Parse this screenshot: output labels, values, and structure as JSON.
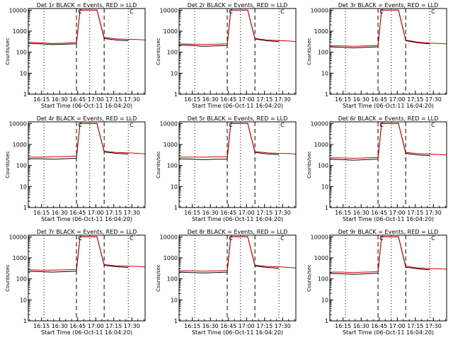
{
  "common": {
    "xlabel": "Start Time (06-Oct-11 16:04:20)",
    "ylabel": "Counts/sec",
    "x_ticks": [
      "16:15",
      "16:30",
      "16:45",
      "17:00",
      "17:15",
      "17:30"
    ],
    "y_ticks": [
      "1",
      "10",
      "100",
      "1000",
      "10000"
    ],
    "event_label": "C",
    "event_label_left": "C",
    "colors": {
      "events": "#000000",
      "lld": "#cc0000",
      "axes": "#000000"
    }
  },
  "chart_data": [
    {
      "type": "line",
      "title": "Det 1r BLACK = Events, RED = LLD",
      "xlabel": "Start Time (06-Oct-11 16:04:20)",
      "ylabel": "Counts/sec",
      "xlim": [
        "16:04",
        "17:41"
      ],
      "ylim": [
        1,
        12000
      ],
      "yscale": "log",
      "dotted_lines": [
        "16:17",
        "16:55",
        "17:27"
      ],
      "dashed_lines": [
        "16:44",
        "17:07"
      ],
      "x": [
        "16:04",
        "16:14",
        "16:24",
        "16:34",
        "16:44",
        "16:47",
        "16:50",
        "16:55",
        "17:01",
        "17:07",
        "17:17",
        "17:27",
        "17:35",
        "17:41"
      ],
      "series": [
        {
          "values": [
            300,
            280,
            260,
            270,
            290,
            10000,
            10000,
            10000,
            10000,
            500,
            430,
            410,
            400,
            380
          ]
        },
        {
          "values": [
            260,
            250,
            230,
            240,
            250,
            10000,
            10000,
            10000,
            10000,
            450,
            380,
            350,
            null,
            null
          ]
        }
      ]
    },
    {
      "type": "line",
      "title": "Det 2r BLACK = Events, RED = LLD",
      "xlabel": "Start Time (06-Oct-11 16:04:20)",
      "ylabel": "Counts/sec",
      "xlim": [
        "16:04",
        "17:41"
      ],
      "ylim": [
        1,
        12000
      ],
      "yscale": "log",
      "dotted_lines": [
        "16:17",
        "16:55",
        "17:27"
      ],
      "dashed_lines": [
        "16:44",
        "17:07"
      ],
      "x": [
        "16:04",
        "16:14",
        "16:24",
        "16:34",
        "16:44",
        "16:47",
        "16:50",
        "16:55",
        "17:01",
        "17:07",
        "17:17",
        "17:27",
        "17:35",
        "17:41"
      ],
      "series": [
        {
          "values": [
            250,
            240,
            230,
            240,
            250,
            10000,
            10000,
            10000,
            10000,
            450,
            380,
            360,
            340,
            320
          ]
        },
        {
          "values": [
            220,
            210,
            190,
            200,
            210,
            10000,
            10000,
            10000,
            10000,
            420,
            350,
            320,
            null,
            null
          ]
        }
      ]
    },
    {
      "type": "line",
      "title": "Det 3r BLACK = Events, RED = LLD",
      "xlabel": "Start Time (06-Oct-11 16:04:20)",
      "ylabel": "Counts/sec",
      "xlim": [
        "16:04",
        "17:41"
      ],
      "ylim": [
        1,
        12000
      ],
      "yscale": "log",
      "dotted_lines": [
        "16:17",
        "16:55",
        "17:27"
      ],
      "dashed_lines": [
        "16:44",
        "17:07"
      ],
      "x": [
        "16:04",
        "16:14",
        "16:24",
        "16:34",
        "16:44",
        "16:47",
        "16:50",
        "16:55",
        "17:01",
        "17:07",
        "17:17",
        "17:27",
        "17:35",
        "17:41"
      ],
      "series": [
        {
          "values": [
            200,
            200,
            190,
            200,
            210,
            10000,
            10000,
            10000,
            10000,
            380,
            300,
            270,
            260,
            250
          ]
        },
        {
          "values": [
            180,
            170,
            160,
            170,
            180,
            10000,
            10000,
            10000,
            10000,
            350,
            280,
            250,
            null,
            null
          ]
        }
      ]
    },
    {
      "type": "line",
      "title": "Det 4r BLACK = Events, RED = LLD",
      "xlabel": "Start Time (06-Oct-11 16:04:20)",
      "ylabel": "Counts/sec",
      "xlim": [
        "16:04",
        "17:41"
      ],
      "ylim": [
        1,
        12000
      ],
      "yscale": "log",
      "dotted_lines": [
        "16:17",
        "16:55",
        "17:27"
      ],
      "dashed_lines": [
        "16:44",
        "17:07"
      ],
      "x": [
        "16:04",
        "16:14",
        "16:24",
        "16:34",
        "16:44",
        "16:47",
        "16:50",
        "16:55",
        "17:01",
        "17:07",
        "17:17",
        "17:27",
        "17:35",
        "17:41"
      ],
      "series": [
        {
          "values": [
            250,
            250,
            260,
            270,
            280,
            10000,
            10000,
            10000,
            10000,
            480,
            420,
            400,
            380,
            360
          ]
        },
        {
          "values": [
            210,
            210,
            200,
            210,
            220,
            10000,
            10000,
            10000,
            10000,
            440,
            380,
            350,
            null,
            null
          ]
        }
      ]
    },
    {
      "type": "line",
      "title": "Det 5r BLACK = Events, RED = LLD",
      "xlabel": "Start Time (06-Oct-11 16:04:20)",
      "ylabel": "Counts/sec",
      "xlim": [
        "16:04",
        "17:41"
      ],
      "ylim": [
        1,
        12000
      ],
      "yscale": "log",
      "dotted_lines": [
        "16:17",
        "16:55",
        "17:27"
      ],
      "dashed_lines": [
        "16:44",
        "17:07"
      ],
      "x": [
        "16:04",
        "16:14",
        "16:24",
        "16:34",
        "16:44",
        "16:47",
        "16:50",
        "16:55",
        "17:01",
        "17:07",
        "17:17",
        "17:27",
        "17:35",
        "17:41"
      ],
      "series": [
        {
          "values": [
            250,
            250,
            250,
            260,
            260,
            10000,
            10000,
            10000,
            10000,
            460,
            400,
            380,
            370,
            350
          ]
        },
        {
          "values": [
            210,
            200,
            190,
            200,
            200,
            10000,
            10000,
            10000,
            10000,
            420,
            360,
            330,
            null,
            null
          ]
        }
      ]
    },
    {
      "type": "line",
      "title": "Det 6r BLACK = Events, RED = LLD",
      "xlabel": "Start Time (06-Oct-11 16:04:20)",
      "ylabel": "Counts/sec",
      "xlim": [
        "16:04",
        "17:41"
      ],
      "ylim": [
        1,
        12000
      ],
      "yscale": "log",
      "dotted_lines": [
        "16:17",
        "16:55",
        "17:27"
      ],
      "dashed_lines": [
        "16:44",
        "17:07"
      ],
      "x": [
        "16:04",
        "16:14",
        "16:24",
        "16:34",
        "16:44",
        "16:47",
        "16:50",
        "16:55",
        "17:01",
        "17:07",
        "17:17",
        "17:27",
        "17:35",
        "17:41"
      ],
      "series": [
        {
          "values": [
            230,
            230,
            220,
            230,
            240,
            10000,
            10000,
            10000,
            10000,
            420,
            370,
            350,
            330,
            320
          ]
        },
        {
          "values": [
            200,
            190,
            180,
            190,
            200,
            10000,
            10000,
            10000,
            10000,
            380,
            320,
            300,
            null,
            null
          ]
        }
      ]
    },
    {
      "type": "line",
      "title": "Det 7r BLACK = Events, RED = LLD",
      "xlabel": "Start Time (06-Oct-11 16:04:20)",
      "ylabel": "Counts/sec",
      "xlim": [
        "16:04",
        "17:41"
      ],
      "ylim": [
        1,
        12000
      ],
      "yscale": "log",
      "dotted_lines": [
        "16:17",
        "16:55",
        "17:27"
      ],
      "dashed_lines": [
        "16:44",
        "17:07"
      ],
      "x": [
        "16:04",
        "16:14",
        "16:24",
        "16:34",
        "16:44",
        "16:47",
        "16:50",
        "16:55",
        "17:01",
        "17:07",
        "17:17",
        "17:27",
        "17:35",
        "17:41"
      ],
      "series": [
        {
          "values": [
            270,
            260,
            260,
            270,
            280,
            10000,
            10000,
            10000,
            10000,
            480,
            420,
            400,
            390,
            370
          ]
        },
        {
          "values": [
            230,
            220,
            210,
            220,
            230,
            10000,
            10000,
            10000,
            10000,
            440,
            380,
            350,
            null,
            null
          ]
        }
      ]
    },
    {
      "type": "line",
      "title": "Det 8r BLACK = Events, RED = LLD",
      "xlabel": "Start Time (06-Oct-11 16:04:20)",
      "ylabel": "Counts/sec",
      "xlim": [
        "16:04",
        "17:41"
      ],
      "ylim": [
        1,
        12000
      ],
      "yscale": "log",
      "dotted_lines": [
        "16:17",
        "16:55",
        "17:27"
      ],
      "dashed_lines": [
        "16:44",
        "17:07"
      ],
      "x": [
        "16:04",
        "16:14",
        "16:24",
        "16:34",
        "16:44",
        "16:47",
        "16:50",
        "16:55",
        "17:01",
        "17:07",
        "17:17",
        "17:27",
        "17:35",
        "17:41"
      ],
      "series": [
        {
          "values": [
            240,
            240,
            230,
            240,
            250,
            10000,
            10000,
            10000,
            10000,
            450,
            390,
            370,
            350,
            330
          ]
        },
        {
          "values": [
            210,
            200,
            190,
            200,
            210,
            10000,
            10000,
            10000,
            10000,
            410,
            350,
            320,
            null,
            null
          ]
        }
      ]
    },
    {
      "type": "line",
      "title": "Det 9r BLACK = Events, RED = LLD",
      "xlabel": "Start Time (06-Oct-11 16:04:20)",
      "ylabel": "Counts/sec",
      "xlim": [
        "16:04",
        "17:41"
      ],
      "ylim": [
        1,
        12000
      ],
      "yscale": "log",
      "dotted_lines": [
        "16:17",
        "16:55",
        "17:27"
      ],
      "dashed_lines": [
        "16:44",
        "17:07"
      ],
      "x": [
        "16:04",
        "16:14",
        "16:24",
        "16:34",
        "16:44",
        "16:47",
        "16:50",
        "16:55",
        "17:01",
        "17:07",
        "17:17",
        "17:27",
        "17:35",
        "17:41"
      ],
      "series": [
        {
          "values": [
            210,
            210,
            200,
            210,
            220,
            10000,
            10000,
            10000,
            10000,
            400,
            330,
            310,
            300,
            290
          ]
        },
        {
          "values": [
            180,
            175,
            165,
            175,
            185,
            10000,
            10000,
            10000,
            10000,
            360,
            300,
            270,
            null,
            null
          ]
        }
      ]
    }
  ]
}
